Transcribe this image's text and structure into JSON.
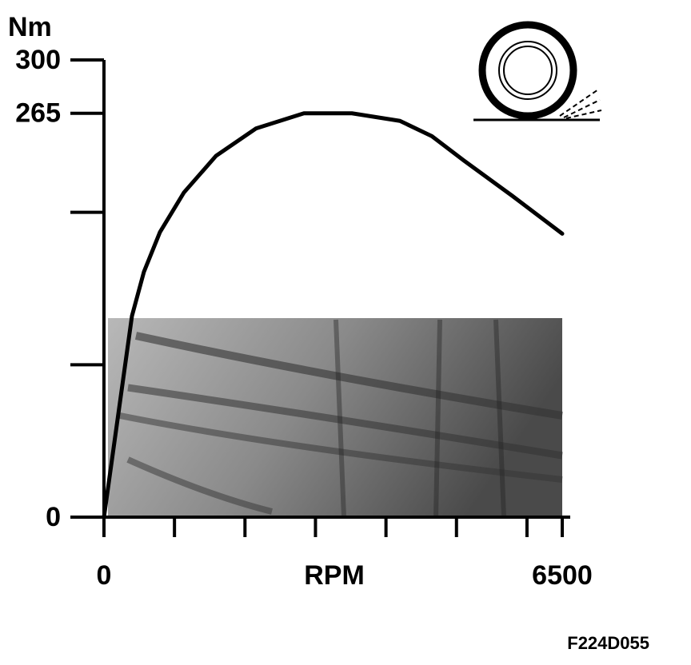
{
  "chart_data": {
    "type": "line",
    "y_label": "Nm",
    "x_label": "RPM",
    "figure_id": "F224D055",
    "x": [
      0,
      397,
      567,
      794,
      1134,
      1588,
      2155,
      2836,
      3517,
      4198,
      4651,
      5105,
      5786,
      6500
    ],
    "series": [
      {
        "color": "#000000",
        "values": [
          0,
          132,
          161,
          187,
          213,
          237,
          255,
          265,
          265,
          260,
          250,
          234,
          211,
          186
        ]
      }
    ],
    "xlim": [
      0,
      6500
    ],
    "xticks": [
      0,
      {
        "value": 1000,
        "label": null
      },
      {
        "value": 2000,
        "label": null
      },
      {
        "value": 3000,
        "label": null
      },
      {
        "value": 4000,
        "label": null
      },
      {
        "value": 5000,
        "label": null
      },
      {
        "value": 6000,
        "label": null
      },
      6500
    ],
    "ylim": [
      0,
      300
    ],
    "yticks": [
      0,
      {
        "value": 100,
        "label": null
      },
      {
        "value": 200,
        "label": null
      },
      265,
      300
    ]
  }
}
